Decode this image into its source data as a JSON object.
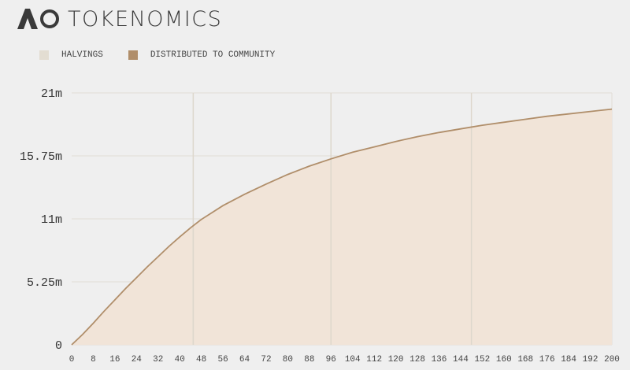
{
  "header": {
    "logo_text": "AO",
    "title": "TOKENOMICS"
  },
  "legend": [
    {
      "label": "HALVINGS",
      "color": "#e3ddd2"
    },
    {
      "label": "DISTRIBUTED TO COMMUNITY",
      "color": "#b08e6a"
    }
  ],
  "colors": {
    "background": "#efefef",
    "area_fill": "#f1e4d8",
    "line": "#b08e6a",
    "halving_line": "#ddd7cc",
    "grid": "#e2dcd6"
  },
  "chart_data": {
    "type": "area",
    "title": "",
    "xlabel": "",
    "ylabel": "",
    "xlim": [
      0,
      200
    ],
    "ylim": [
      0,
      21
    ],
    "y_unit": "m",
    "x_ticks": [
      0,
      8,
      16,
      24,
      32,
      40,
      48,
      56,
      64,
      72,
      80,
      88,
      96,
      104,
      112,
      120,
      128,
      136,
      144,
      152,
      160,
      168,
      176,
      184,
      192,
      200
    ],
    "y_ticks": [
      "0",
      "5.25m",
      "11m",
      "15.75m",
      "21m"
    ],
    "y_tick_values": [
      0,
      5.25,
      10.5,
      15.75,
      21
    ],
    "halvings": [
      45,
      96,
      148
    ],
    "series": [
      {
        "name": "DISTRIBUTED TO COMMUNITY",
        "x": [
          0,
          4,
          8,
          12,
          16,
          20,
          24,
          28,
          32,
          36,
          40,
          44,
          48,
          56,
          64,
          72,
          80,
          88,
          96,
          104,
          112,
          120,
          128,
          136,
          144,
          152,
          160,
          168,
          176,
          184,
          192,
          200
        ],
        "y": [
          0,
          0.85,
          1.8,
          2.8,
          3.75,
          4.7,
          5.6,
          6.5,
          7.35,
          8.2,
          9.0,
          9.75,
          10.45,
          11.6,
          12.55,
          13.4,
          14.2,
          14.9,
          15.5,
          16.05,
          16.5,
          16.95,
          17.35,
          17.7,
          18.0,
          18.3,
          18.55,
          18.8,
          19.05,
          19.25,
          19.45,
          19.65
        ]
      }
    ]
  }
}
